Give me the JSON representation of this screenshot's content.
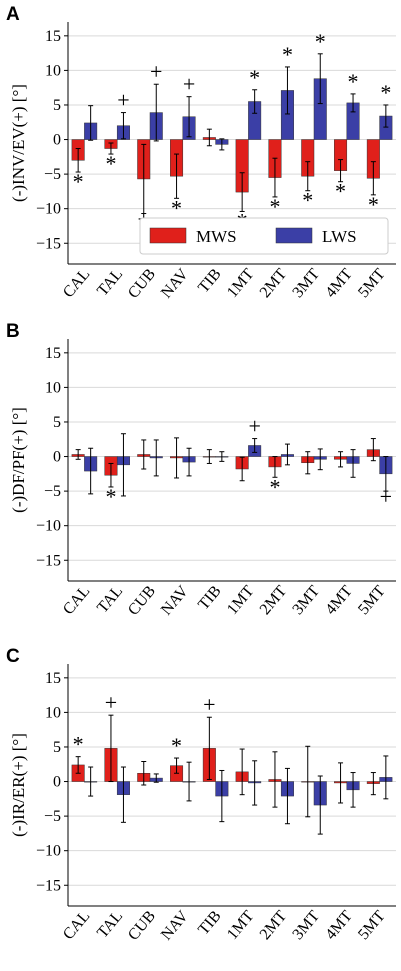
{
  "colors": {
    "MWS": "#e0201b",
    "LWS": "#3b3fa6",
    "error": "#000000",
    "grid": "#d9d9d9"
  },
  "chart_data": [
    {
      "panel": "A",
      "type": "bar",
      "ylabel": "(-)INV/EV(+) [°]",
      "ylim": [
        -18,
        17
      ],
      "yticks": [
        -15,
        -10,
        -5,
        0,
        5,
        10,
        15
      ],
      "grid": true,
      "legend": {
        "placement": "bottom-right",
        "entries": [
          "MWS",
          "LWS"
        ]
      },
      "categories": [
        "CAL",
        "TAL",
        "CUB",
        "NAV",
        "TIB",
        "1MT",
        "2MT",
        "3MT",
        "4MT",
        "5MT"
      ],
      "series": [
        {
          "name": "MWS",
          "values": [
            -3.0,
            -1.3,
            -5.7,
            -5.3,
            0.3,
            -7.6,
            -5.5,
            -5.3,
            -4.5,
            -5.6
          ],
          "err": [
            1.7,
            0.8,
            5.0,
            3.2,
            1.2,
            2.8,
            2.8,
            2.1,
            1.6,
            2.4
          ]
        },
        {
          "name": "LWS",
          "values": [
            2.4,
            2.0,
            3.9,
            3.3,
            -0.7,
            5.5,
            7.1,
            8.8,
            5.3,
            3.4
          ],
          "err": [
            2.5,
            1.9,
            4.1,
            2.9,
            0.8,
            1.7,
            3.4,
            3.6,
            1.3,
            1.6
          ]
        }
      ],
      "annotations": {
        "MWS": [
          "*",
          "*",
          "+",
          "*",
          "",
          "*",
          "*",
          "*",
          "*",
          "*"
        ],
        "LWS": [
          "",
          "+",
          "+",
          "+",
          "",
          "*",
          "*",
          "*",
          "*",
          "*"
        ]
      }
    },
    {
      "panel": "B",
      "type": "bar",
      "ylabel": "(-)DF/PF(+) [°]",
      "ylim": [
        -18,
        17
      ],
      "yticks": [
        -15,
        -10,
        -5,
        0,
        5,
        10,
        15
      ],
      "grid": true,
      "categories": [
        "CAL",
        "TAL",
        "CUB",
        "NAV",
        "TIB",
        "1MT",
        "2MT",
        "3MT",
        "4MT",
        "5MT"
      ],
      "series": [
        {
          "name": "MWS",
          "values": [
            0.3,
            -2.7,
            0.3,
            -0.2,
            0.0,
            -1.8,
            -1.5,
            -0.9,
            -0.4,
            1.0
          ],
          "err": [
            0.7,
            1.7,
            2.1,
            2.9,
            1.0,
            1.7,
            1.5,
            1.6,
            1.1,
            1.6
          ]
        },
        {
          "name": "LWS",
          "values": [
            -2.1,
            -1.2,
            -0.2,
            -0.8,
            0.0,
            1.6,
            0.3,
            -0.4,
            -1.0,
            -2.5
          ],
          "err": [
            3.3,
            4.5,
            2.6,
            2.0,
            0.7,
            1.0,
            1.5,
            1.5,
            2.0,
            2.5
          ]
        }
      ],
      "annotations": {
        "MWS": [
          "",
          "*",
          "",
          "",
          "",
          "",
          "*",
          "",
          "",
          ""
        ],
        "LWS": [
          "",
          "",
          "",
          "",
          "",
          "+",
          "",
          "",
          "",
          "+"
        ]
      }
    },
    {
      "panel": "C",
      "type": "bar",
      "ylabel": "(-)IR/ER(+) [°]",
      "ylim": [
        -18,
        17
      ],
      "yticks": [
        -15,
        -10,
        -5,
        0,
        5,
        10,
        15
      ],
      "grid": true,
      "categories": [
        "CAL",
        "TAL",
        "CUB",
        "NAV",
        "TIB",
        "1MT",
        "2MT",
        "3MT",
        "4MT",
        "5MT"
      ],
      "series": [
        {
          "name": "MWS",
          "values": [
            2.4,
            4.8,
            1.2,
            2.3,
            4.8,
            1.4,
            0.3,
            0.0,
            -0.2,
            -0.3
          ],
          "err": [
            1.2,
            4.8,
            1.7,
            1.1,
            4.5,
            3.3,
            4.0,
            5.1,
            2.9,
            1.6
          ]
        },
        {
          "name": "LWS",
          "values": [
            0.0,
            -1.9,
            0.5,
            0.0,
            -2.1,
            -0.2,
            -2.1,
            -3.4,
            -1.2,
            0.6
          ],
          "err": [
            2.1,
            4.0,
            0.6,
            2.8,
            3.7,
            3.2,
            4.0,
            4.2,
            2.5,
            3.1
          ]
        }
      ],
      "annotations": {
        "MWS": [
          "*",
          "+",
          "",
          "*",
          "+",
          "",
          "",
          "",
          "",
          ""
        ],
        "LWS": [
          "",
          "",
          "",
          "",
          "",
          "",
          "",
          "",
          "",
          ""
        ]
      }
    }
  ]
}
